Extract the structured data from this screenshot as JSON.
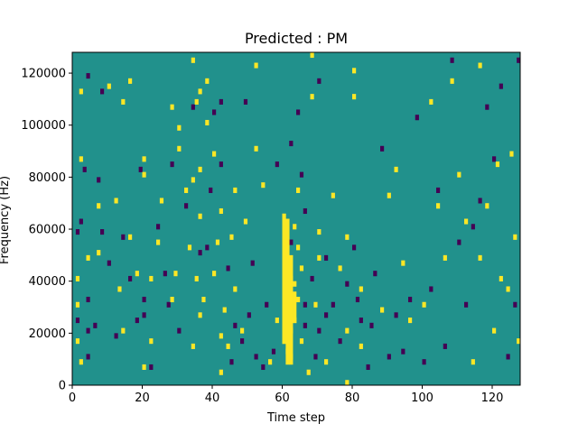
{
  "chart_data": {
    "type": "heatmap",
    "title": "Predicted : PM",
    "xlabel": "Time step",
    "ylabel": "Frequency (Hz)",
    "xlim": [
      0,
      128
    ],
    "ylim": [
      0,
      128000
    ],
    "x_ticks": [
      0,
      20,
      40,
      60,
      80,
      100,
      120
    ],
    "y_ticks": [
      0,
      20000,
      40000,
      60000,
      80000,
      100000,
      120000
    ],
    "y_tick_labels": [
      "0",
      "20000",
      "40000",
      "60000",
      "80000",
      "100000",
      "120000"
    ],
    "grid": false,
    "colormap": "viridis",
    "value_colors": {
      "low": "#440154",
      "mid": "#21918c",
      "high": "#fde725"
    },
    "background_value": "mid",
    "high_bins": [
      [
        1,
        16000
      ],
      [
        1,
        30000
      ],
      [
        1,
        40000
      ],
      [
        2,
        8000
      ],
      [
        2,
        86000
      ],
      [
        2,
        112000
      ],
      [
        4,
        48000
      ],
      [
        7,
        50000
      ],
      [
        7,
        68000
      ],
      [
        10,
        114000
      ],
      [
        12,
        70000
      ],
      [
        13,
        36000
      ],
      [
        14,
        20000
      ],
      [
        14,
        108000
      ],
      [
        16,
        56000
      ],
      [
        16,
        116000
      ],
      [
        18,
        42000
      ],
      [
        20,
        6000
      ],
      [
        20,
        80000
      ],
      [
        20,
        86000
      ],
      [
        22,
        16000
      ],
      [
        22,
        40000
      ],
      [
        24,
        54000
      ],
      [
        25,
        70000
      ],
      [
        28,
        32000
      ],
      [
        28,
        106000
      ],
      [
        29,
        42000
      ],
      [
        30,
        90000
      ],
      [
        30,
        98000
      ],
      [
        32,
        74000
      ],
      [
        33,
        52000
      ],
      [
        34,
        14000
      ],
      [
        34,
        78000
      ],
      [
        34,
        124000
      ],
      [
        35,
        40000
      ],
      [
        35,
        108000
      ],
      [
        36,
        26000
      ],
      [
        36,
        64000
      ],
      [
        36,
        82000
      ],
      [
        36,
        112000
      ],
      [
        37,
        32000
      ],
      [
        38,
        100000
      ],
      [
        38,
        116000
      ],
      [
        40,
        42000
      ],
      [
        40,
        88000
      ],
      [
        41,
        54000
      ],
      [
        42,
        4000
      ],
      [
        42,
        18000
      ],
      [
        42,
        66000
      ],
      [
        43,
        28000
      ],
      [
        44,
        14000
      ],
      [
        45,
        56000
      ],
      [
        46,
        36000
      ],
      [
        46,
        74000
      ],
      [
        48,
        20000
      ],
      [
        49,
        62000
      ],
      [
        52,
        90000
      ],
      [
        52,
        122000
      ],
      [
        54,
        76000
      ],
      [
        56,
        8000
      ],
      [
        58,
        24000
      ],
      [
        60,
        16000
      ],
      [
        60,
        30000
      ],
      [
        60,
        42000
      ],
      [
        60,
        52000
      ],
      [
        60,
        62000
      ],
      [
        61,
        12000
      ],
      [
        61,
        28000
      ],
      [
        61,
        48000
      ],
      [
        62,
        40000
      ],
      [
        62,
        20000
      ],
      [
        62,
        10000
      ],
      [
        63,
        24000
      ],
      [
        63,
        38000
      ],
      [
        63,
        60000
      ],
      [
        64,
        32000
      ],
      [
        64,
        52000
      ],
      [
        64,
        74000
      ],
      [
        65,
        16000
      ],
      [
        65,
        44000
      ],
      [
        67,
        4000
      ],
      [
        68,
        110000
      ],
      [
        68,
        126000
      ],
      [
        69,
        30000
      ],
      [
        70,
        48000
      ],
      [
        70,
        58000
      ],
      [
        72,
        8000
      ],
      [
        74,
        72000
      ],
      [
        76,
        44000
      ],
      [
        78,
        0
      ],
      [
        78,
        20000
      ],
      [
        78,
        56000
      ],
      [
        80,
        120000
      ],
      [
        80,
        110000
      ],
      [
        82,
        14000
      ],
      [
        82,
        36000
      ],
      [
        88,
        28000
      ],
      [
        90,
        72000
      ],
      [
        92,
        82000
      ],
      [
        94,
        46000
      ],
      [
        96,
        24000
      ],
      [
        100,
        30000
      ],
      [
        102,
        108000
      ],
      [
        104,
        68000
      ],
      [
        106,
        48000
      ],
      [
        108,
        116000
      ],
      [
        110,
        80000
      ],
      [
        112,
        62000
      ],
      [
        114,
        8000
      ],
      [
        116,
        122000
      ],
      [
        116,
        48000
      ],
      [
        118,
        68000
      ],
      [
        120,
        20000
      ],
      [
        121,
        84000
      ],
      [
        122,
        40000
      ],
      [
        124,
        36000
      ],
      [
        125,
        88000
      ],
      [
        126,
        56000
      ],
      [
        127,
        16000
      ]
    ],
    "low_bins": [
      [
        1,
        24000
      ],
      [
        1,
        58000
      ],
      [
        2,
        62000
      ],
      [
        3,
        82000
      ],
      [
        4,
        10000
      ],
      [
        4,
        20000
      ],
      [
        4,
        32000
      ],
      [
        4,
        118000
      ],
      [
        6,
        22000
      ],
      [
        7,
        78000
      ],
      [
        8,
        58000
      ],
      [
        8,
        112000
      ],
      [
        10,
        46000
      ],
      [
        12,
        18000
      ],
      [
        14,
        56000
      ],
      [
        16,
        40000
      ],
      [
        18,
        24000
      ],
      [
        19,
        82000
      ],
      [
        20,
        26000
      ],
      [
        20,
        32000
      ],
      [
        22,
        6000
      ],
      [
        24,
        60000
      ],
      [
        26,
        42000
      ],
      [
        27,
        30000
      ],
      [
        28,
        84000
      ],
      [
        30,
        20000
      ],
      [
        32,
        68000
      ],
      [
        34,
        106000
      ],
      [
        36,
        50000
      ],
      [
        38,
        52000
      ],
      [
        39,
        74000
      ],
      [
        40,
        104000
      ],
      [
        42,
        108000
      ],
      [
        42,
        84000
      ],
      [
        44,
        44000
      ],
      [
        45,
        8000
      ],
      [
        46,
        22000
      ],
      [
        48,
        16000
      ],
      [
        49,
        108000
      ],
      [
        50,
        26000
      ],
      [
        51,
        46000
      ],
      [
        52,
        10000
      ],
      [
        54,
        6000
      ],
      [
        55,
        30000
      ],
      [
        57,
        12000
      ],
      [
        58,
        84000
      ],
      [
        62,
        54000
      ],
      [
        62,
        92000
      ],
      [
        64,
        104000
      ],
      [
        65,
        80000
      ],
      [
        66,
        30000
      ],
      [
        66,
        22000
      ],
      [
        66,
        66000
      ],
      [
        68,
        40000
      ],
      [
        69,
        10000
      ],
      [
        70,
        20000
      ],
      [
        70,
        116000
      ],
      [
        72,
        26000
      ],
      [
        72,
        48000
      ],
      [
        74,
        30000
      ],
      [
        76,
        16000
      ],
      [
        78,
        38000
      ],
      [
        80,
        52000
      ],
      [
        81,
        32000
      ],
      [
        82,
        24000
      ],
      [
        84,
        6000
      ],
      [
        85,
        22000
      ],
      [
        86,
        42000
      ],
      [
        88,
        90000
      ],
      [
        90,
        10000
      ],
      [
        92,
        26000
      ],
      [
        94,
        12000
      ],
      [
        96,
        32000
      ],
      [
        98,
        102000
      ],
      [
        100,
        8000
      ],
      [
        102,
        36000
      ],
      [
        104,
        74000
      ],
      [
        106,
        14000
      ],
      [
        108,
        124000
      ],
      [
        110,
        54000
      ],
      [
        112,
        30000
      ],
      [
        114,
        60000
      ],
      [
        116,
        70000
      ],
      [
        118,
        106000
      ],
      [
        120,
        86000
      ],
      [
        122,
        114000
      ],
      [
        124,
        10000
      ],
      [
        126,
        30000
      ],
      [
        127,
        124000
      ]
    ],
    "high_bands": [
      {
        "x": 60,
        "y_from": 16000,
        "y_to": 66000
      },
      {
        "x": 61,
        "y_from": 8000,
        "y_to": 64000
      },
      {
        "x": 62,
        "y_from": 8000,
        "y_to": 50000
      },
      {
        "x": 63,
        "y_from": 24000,
        "y_to": 36000
      }
    ]
  }
}
